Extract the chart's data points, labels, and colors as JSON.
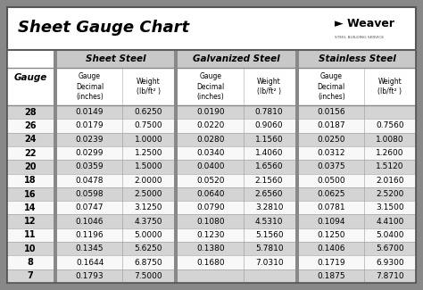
{
  "title": "Sheet Gauge Chart",
  "bg_outer": "#888888",
  "bg_white": "#ffffff",
  "row_gray": "#d4d4d4",
  "row_white": "#f8f8f8",
  "header_gray": "#c8c8c8",
  "divider_color": "#888888",
  "border_color": "#555555",
  "gauges": [
    28,
    26,
    24,
    22,
    20,
    18,
    16,
    14,
    12,
    11,
    10,
    8,
    7
  ],
  "sheet_steel": [
    [
      "0.0149",
      "0.6250"
    ],
    [
      "0.0179",
      "0.7500"
    ],
    [
      "0.0239",
      "1.0000"
    ],
    [
      "0.0299",
      "1.2500"
    ],
    [
      "0.0359",
      "1.5000"
    ],
    [
      "0.0478",
      "2.0000"
    ],
    [
      "0.0598",
      "2.5000"
    ],
    [
      "0.0747",
      "3.1250"
    ],
    [
      "0.1046",
      "4.3750"
    ],
    [
      "0.1196",
      "5.0000"
    ],
    [
      "0.1345",
      "5.6250"
    ],
    [
      "0.1644",
      "6.8750"
    ],
    [
      "0.1793",
      "7.5000"
    ]
  ],
  "galvanized_steel": [
    [
      "0.0190",
      "0.7810"
    ],
    [
      "0.0220",
      "0.9060"
    ],
    [
      "0.0280",
      "1.1560"
    ],
    [
      "0.0340",
      "1.4060"
    ],
    [
      "0.0400",
      "1.6560"
    ],
    [
      "0.0520",
      "2.1560"
    ],
    [
      "0.0640",
      "2.6560"
    ],
    [
      "0.0790",
      "3.2810"
    ],
    [
      "0.1080",
      "4.5310"
    ],
    [
      "0.1230",
      "5.1560"
    ],
    [
      "0.1380",
      "5.7810"
    ],
    [
      "0.1680",
      "7.0310"
    ],
    [
      "",
      ""
    ]
  ],
  "stainless_steel": [
    [
      "0.0156",
      ""
    ],
    [
      "0.0187",
      "0.7560"
    ],
    [
      "0.0250",
      "1.0080"
    ],
    [
      "0.0312",
      "1.2600"
    ],
    [
      "0.0375",
      "1.5120"
    ],
    [
      "0.0500",
      "2.0160"
    ],
    [
      "0.0625",
      "2.5200"
    ],
    [
      "0.0781",
      "3.1500"
    ],
    [
      "0.1094",
      "4.4100"
    ],
    [
      "0.1250",
      "5.0400"
    ],
    [
      "0.1406",
      "5.6700"
    ],
    [
      "0.1719",
      "6.9300"
    ],
    [
      "0.1875",
      "7.8710"
    ]
  ],
  "col_headers": [
    "Sheet Steel",
    "Galvanized Steel",
    "Stainless Steel"
  ],
  "gauge_label": "Gauge"
}
